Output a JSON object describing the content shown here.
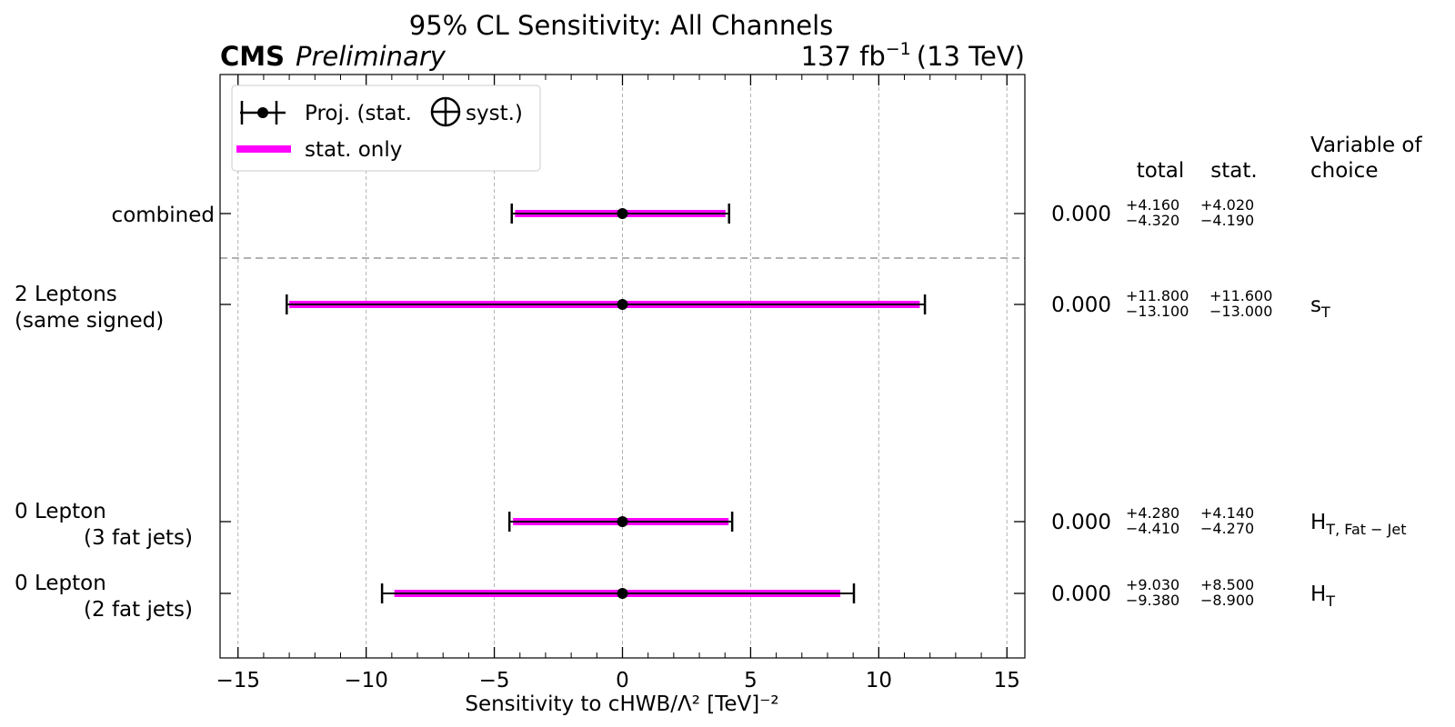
{
  "header": {
    "title": "95% CL Sensitivity: All Channels",
    "experiment": "CMS",
    "status": "Preliminary",
    "lumi": "137 fb",
    "lumi_exp": "−1",
    "energy": "(13 TeV)"
  },
  "legend": {
    "proj_label_a": "Proj. (stat.",
    "proj_label_b": "syst.)",
    "stat_label": "stat. only"
  },
  "table_headers": {
    "total": "total",
    "stat": "stat.",
    "variable_line1": "Variable of",
    "variable_line2": "choice"
  },
  "colors": {
    "stat_band": "#ff00ff",
    "error_bar": "#000000",
    "grid": "#b0b0b0",
    "separator": "#999999"
  },
  "chart_data": {
    "type": "scatter",
    "title": "95% CL Sensitivity: All Channels",
    "xlabel": "Sensitivity to cHWB/Λ² [TeV]⁻²",
    "xlim": [
      -15.7,
      15.7
    ],
    "xticks": [
      -15,
      -10,
      -5,
      0,
      5,
      10,
      15
    ],
    "xtick_labels": [
      "−15",
      "−10",
      "−5",
      "0",
      "5",
      "10",
      "15"
    ],
    "grid": "vertical dashed",
    "legend_position": "top-left",
    "rows": [
      {
        "label_lines": [
          "combined"
        ],
        "value": 0.0,
        "value_text": "0.000",
        "total_plus": 4.16,
        "total_minus": 4.32,
        "stat_plus": 4.02,
        "stat_minus": 4.19,
        "total_plus_text": "+4.160",
        "total_minus_text": "−4.320",
        "stat_plus_text": "+4.020",
        "stat_minus_text": "−4.190",
        "variable": "",
        "variable_sub": ""
      },
      {
        "label_lines": [
          "2 Leptons",
          "(same signed)"
        ],
        "value": 0.0,
        "value_text": "0.000",
        "total_plus": 11.8,
        "total_minus": 13.1,
        "stat_plus": 11.6,
        "stat_minus": 13.0,
        "total_plus_text": "+11.800",
        "total_minus_text": "−13.100",
        "stat_plus_text": "+11.600",
        "stat_minus_text": "−13.000",
        "variable": "s",
        "variable_sub": "T"
      },
      {
        "label_lines": [
          "0 Lepton",
          "(3 fat jets)"
        ],
        "value": 0.0,
        "value_text": "0.000",
        "total_plus": 4.28,
        "total_minus": 4.41,
        "stat_plus": 4.14,
        "stat_minus": 4.27,
        "total_plus_text": "+4.280",
        "total_minus_text": "−4.410",
        "stat_plus_text": "+4.140",
        "stat_minus_text": "−4.270",
        "variable": "H",
        "variable_sub": "T, Fat − Jet"
      },
      {
        "label_lines": [
          "0 Lepton",
          "(2 fat jets)"
        ],
        "value": 0.0,
        "value_text": "0.000",
        "total_plus": 9.03,
        "total_minus": 9.38,
        "stat_plus": 8.5,
        "stat_minus": 8.9,
        "total_plus_text": "+9.030",
        "total_minus_text": "−9.380",
        "stat_plus_text": "+8.500",
        "stat_minus_text": "−8.900",
        "variable": "H",
        "variable_sub": "T"
      }
    ]
  }
}
